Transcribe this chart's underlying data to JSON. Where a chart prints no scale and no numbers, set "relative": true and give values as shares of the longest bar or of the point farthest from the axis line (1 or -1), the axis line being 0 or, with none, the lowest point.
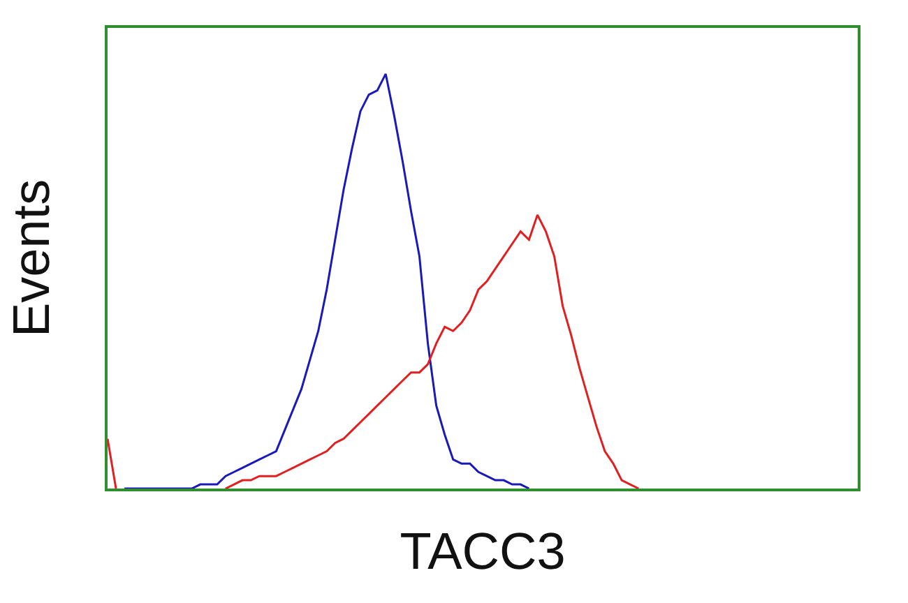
{
  "chart_data": {
    "type": "line",
    "relative": true,
    "xlabel": "TACC3",
    "ylabel": "Events",
    "categories": [
      null,
      null,
      null,
      null,
      null,
      null,
      null,
      null,
      null,
      null,
      null,
      null,
      null,
      null,
      null,
      null,
      null,
      null,
      null,
      null,
      null,
      null,
      null,
      null,
      null,
      null,
      null,
      null,
      null,
      null,
      null,
      null,
      null,
      null,
      null,
      null,
      null,
      null,
      null,
      null,
      null,
      null,
      null,
      null,
      null,
      null,
      null,
      null,
      null,
      null,
      null,
      null,
      null,
      null,
      null,
      null,
      null,
      null,
      null,
      null,
      null,
      null,
      null,
      null,
      null,
      null,
      null,
      null,
      null,
      null,
      null,
      null,
      null,
      null,
      null,
      null,
      null,
      null,
      null,
      null,
      null,
      null,
      null,
      null,
      null,
      null,
      null,
      null,
      null,
      null
    ],
    "series": [
      {
        "color": "#1a1ab8",
        "values": [
          null,
          null,
          0,
          0,
          0,
          0,
          0,
          0,
          0,
          0,
          0,
          0.01,
          0.01,
          0.01,
          0.03,
          0.04,
          0.05,
          0.06,
          0.07,
          0.08,
          0.09,
          0.14,
          0.19,
          0.24,
          0.31,
          0.38,
          0.48,
          0.6,
          0.72,
          0.82,
          0.91,
          0.95,
          0.96,
          1,
          0.9,
          0.79,
          0.67,
          0.56,
          0.35,
          0.2,
          0.13,
          0.07,
          0.06,
          0.06,
          0.04,
          0.03,
          0.02,
          0.02,
          0.01,
          0.01,
          0,
          null,
          null,
          null,
          null,
          null,
          null,
          null,
          null,
          null,
          null,
          null,
          null,
          null,
          null,
          null,
          null,
          null,
          null,
          null,
          null,
          null,
          null,
          null,
          null,
          null,
          null,
          null,
          null,
          null,
          null,
          null,
          null,
          null,
          null,
          null,
          null,
          null,
          null,
          null
        ]
      },
      {
        "color": "#e02020",
        "values": [
          0.12,
          0,
          null,
          null,
          null,
          null,
          null,
          null,
          null,
          null,
          null,
          null,
          null,
          null,
          0,
          0.01,
          0.02,
          0.02,
          0.03,
          0.03,
          0.03,
          0.04,
          0.05,
          0.06,
          0.07,
          0.08,
          0.09,
          0.11,
          0.12,
          0.14,
          0.16,
          0.18,
          0.2,
          0.22,
          0.24,
          0.26,
          0.28,
          0.28,
          0.3,
          0.35,
          0.39,
          0.38,
          0.4,
          0.43,
          0.48,
          0.5,
          0.53,
          0.56,
          0.59,
          0.62,
          0.6,
          0.66,
          0.62,
          0.56,
          0.44,
          0.37,
          0.29,
          0.22,
          0.15,
          0.09,
          0.06,
          0.02,
          0.01,
          0,
          null,
          null,
          null,
          null,
          null,
          null,
          null,
          null,
          null,
          null,
          null,
          null,
          null,
          null,
          null,
          null,
          null,
          null,
          null,
          null,
          null,
          null,
          null,
          null,
          null,
          null
        ]
      }
    ]
  }
}
